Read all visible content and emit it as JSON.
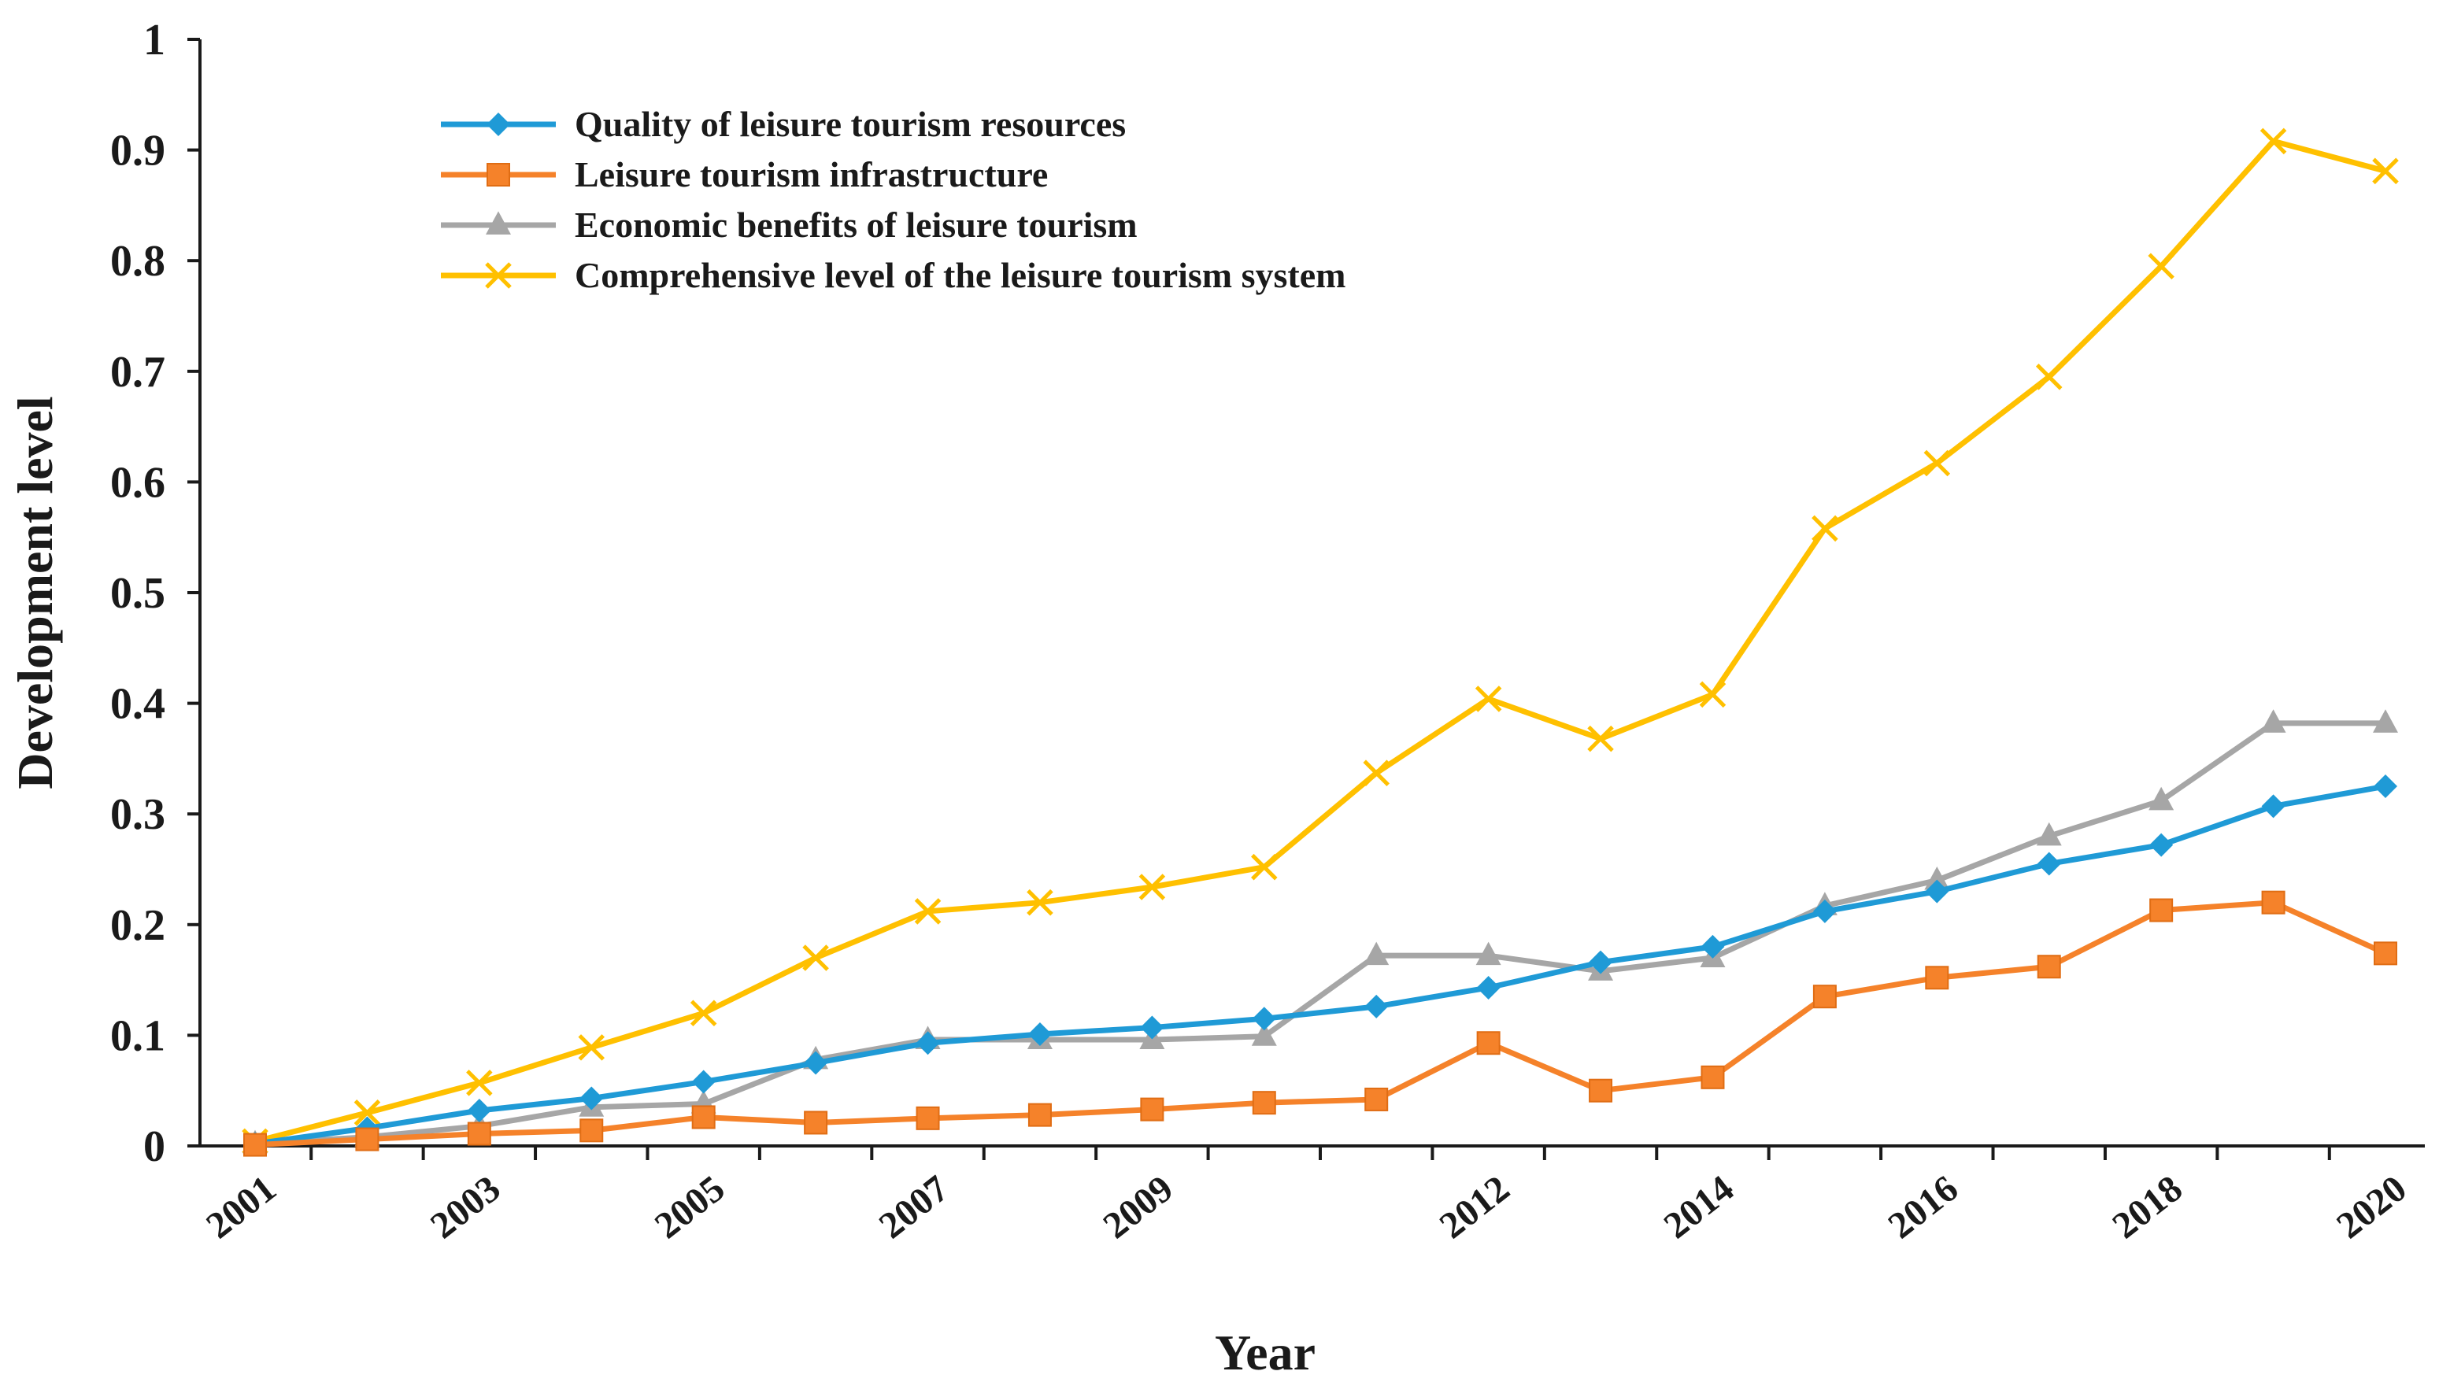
{
  "chart_data": {
    "type": "line",
    "title": "",
    "xlabel": "Year",
    "ylabel": "Development level",
    "ylim": [
      0,
      1
    ],
    "y_ticks": [
      "0",
      "0.1",
      "0.2",
      "0.3",
      "0.4",
      "0.5",
      "0.6",
      "0.7",
      "0.8",
      "0.9",
      "1"
    ],
    "x": [
      2001,
      2002,
      2003,
      2004,
      2005,
      2006,
      2007,
      2008,
      2009,
      2010,
      2011,
      2012,
      2013,
      2014,
      2015,
      2016,
      2017,
      2018,
      2019,
      2020
    ],
    "x_tick_labels": [
      "2001",
      "",
      "2003",
      "",
      "2005",
      "",
      "2007",
      "",
      "2009",
      "",
      "",
      "2012",
      "",
      "2014",
      "",
      "2016",
      "",
      "2018",
      "",
      "2020"
    ],
    "grid": false,
    "legend_position": "top-left",
    "series": [
      {
        "name": "Quality of leisure tourism resources",
        "color": "#1f9ad6",
        "marker": "diamond",
        "values": [
          0.002,
          0.016,
          0.032,
          0.043,
          0.058,
          0.075,
          0.093,
          0.101,
          0.107,
          0.115,
          0.126,
          0.143,
          0.166,
          0.18,
          0.212,
          0.23,
          0.255,
          0.272,
          0.307,
          0.325
        ]
      },
      {
        "name": "Leisure tourism infrastructure",
        "color": "#f5822a",
        "marker": "square",
        "values": [
          0.001,
          0.006,
          0.011,
          0.014,
          0.026,
          0.021,
          0.025,
          0.028,
          0.033,
          0.039,
          0.042,
          0.093,
          0.05,
          0.062,
          0.135,
          0.152,
          0.162,
          0.213,
          0.22,
          0.174
        ]
      },
      {
        "name": "Economic benefits of leisure tourism",
        "color": "#a6a6a6",
        "marker": "triangle",
        "values": [
          0.002,
          0.008,
          0.018,
          0.035,
          0.038,
          0.078,
          0.096,
          0.096,
          0.096,
          0.099,
          0.172,
          0.172,
          0.158,
          0.17,
          0.217,
          0.24,
          0.28,
          0.312,
          0.382,
          0.382
        ]
      },
      {
        "name": " Comprehensive level of the leisure tourism system",
        "color": "#ffc000",
        "marker": "x",
        "values": [
          0.004,
          0.03,
          0.057,
          0.089,
          0.12,
          0.17,
          0.212,
          0.22,
          0.234,
          0.252,
          0.337,
          0.404,
          0.368,
          0.408,
          0.558,
          0.617,
          0.695,
          0.795,
          0.908,
          0.881
        ]
      }
    ]
  }
}
